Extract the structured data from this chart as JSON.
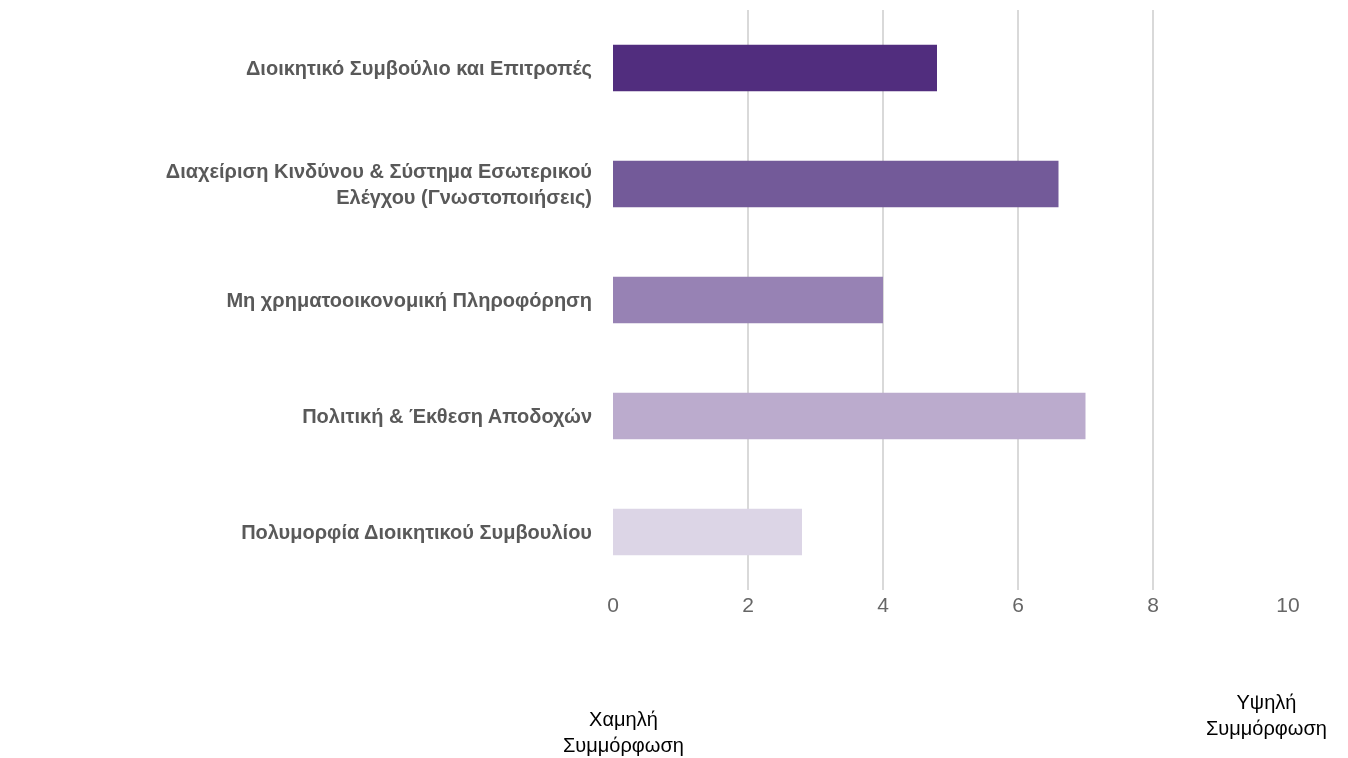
{
  "chart_data": {
    "type": "bar",
    "orientation": "horizontal",
    "categories": [
      "Διοικητικό Συμβούλιο και Επιτροπές",
      "Διαχείριση Κινδύνου & Σύστημα Εσωτερικού\nΕλέγχου (Γνωστοποιήσεις)",
      "Μη χρηματοοικονομική Πληροφόρηση",
      "Πολιτική & Έκθεση Αποδοχών",
      "Πολυμορφία Διοικητικού Συμβουλίου"
    ],
    "values": [
      4.8,
      6.6,
      4.0,
      7.0,
      2.8
    ],
    "colors": [
      "#512d7e",
      "#735a99",
      "#9782b4",
      "#bbabcd",
      "#dcd5e6"
    ],
    "xlim": [
      0,
      10
    ],
    "xticks": [
      0,
      2,
      4,
      6,
      8,
      10
    ],
    "grid": "x",
    "annotations": [
      "Χαμηλή\nΣυμμόρφωση",
      "Υψηλή\nΣυμμόρφωση"
    ]
  }
}
